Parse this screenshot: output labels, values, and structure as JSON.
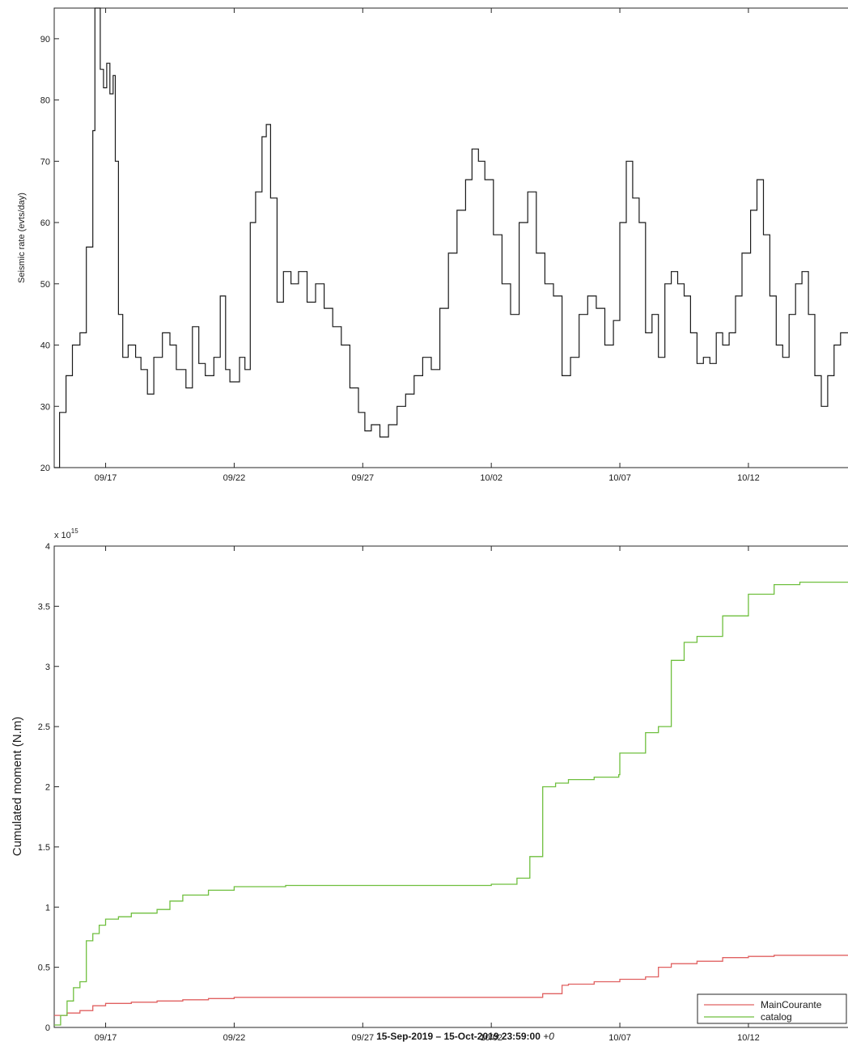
{
  "chart_data": [
    {
      "type": "line",
      "title": "",
      "xlabel": "",
      "ylabel": "Seismic rate (evts/day)",
      "xlim": [
        "2019-09-15",
        "2019-10-15"
      ],
      "ylim": [
        20,
        95
      ],
      "yticks": [
        20,
        30,
        40,
        50,
        60,
        70,
        80,
        90
      ],
      "xticks": [
        {
          "date": "2019-09-17",
          "label": "09/17"
        },
        {
          "date": "2019-09-22",
          "label": "09/22"
        },
        {
          "date": "2019-09-27",
          "label": "09/27"
        },
        {
          "date": "2019-10-02",
          "label": "10/02"
        },
        {
          "date": "2019-10-07",
          "label": "10/07"
        },
        {
          "date": "2019-10-12",
          "label": "10/12"
        }
      ],
      "grid": false,
      "color": "#1a1a1a",
      "series": [
        {
          "x": [
            "2019-09-15 00:00",
            "2019-09-15 05:00",
            "2019-09-15 11:00",
            "2019-09-15 17:00",
            "2019-09-16 00:00",
            "2019-09-16 06:00",
            "2019-09-16 12:00",
            "2019-09-16 14:00",
            "2019-09-16 19:00",
            "2019-09-16 22:00",
            "2019-09-17 01:00",
            "2019-09-17 04:00",
            "2019-09-17 07:00",
            "2019-09-17 09:00",
            "2019-09-17 12:00",
            "2019-09-17 16:00",
            "2019-09-17 21:00",
            "2019-09-18 04:00",
            "2019-09-18 09:00",
            "2019-09-18 15:00",
            "2019-09-18 21:00",
            "2019-09-19 05:00",
            "2019-09-19 12:00",
            "2019-09-19 18:00",
            "2019-09-20 03:00",
            "2019-09-20 09:00",
            "2019-09-20 15:00",
            "2019-09-20 21:00",
            "2019-09-21 05:00",
            "2019-09-21 11:00",
            "2019-09-21 16:00",
            "2019-09-21 20:00",
            "2019-09-22 00:00",
            "2019-09-22 05:00",
            "2019-09-22 10:00",
            "2019-09-22 15:00",
            "2019-09-22 20:00",
            "2019-09-23 02:00",
            "2019-09-23 06:00",
            "2019-09-23 10:00",
            "2019-09-23 16:00",
            "2019-09-23 22:00",
            "2019-09-24 05:00",
            "2019-09-24 12:00",
            "2019-09-24 20:00",
            "2019-09-25 04:00",
            "2019-09-25 12:00",
            "2019-09-25 20:00",
            "2019-09-26 04:00",
            "2019-09-26 12:00",
            "2019-09-26 20:00",
            "2019-09-27 02:00",
            "2019-09-27 08:00",
            "2019-09-27 16:00",
            "2019-09-28 00:00",
            "2019-09-28 08:00",
            "2019-09-28 16:00",
            "2019-09-29 00:00",
            "2019-09-29 08:00",
            "2019-09-29 16:00",
            "2019-09-30 00:00",
            "2019-09-30 08:00",
            "2019-09-30 16:00",
            "2019-10-01 00:00",
            "2019-10-01 06:00",
            "2019-10-01 12:00",
            "2019-10-01 18:00",
            "2019-10-02 02:00",
            "2019-10-02 10:00",
            "2019-10-02 18:00",
            "2019-10-03 02:00",
            "2019-10-03 10:00",
            "2019-10-03 18:00",
            "2019-10-04 02:00",
            "2019-10-04 10:00",
            "2019-10-04 18:00",
            "2019-10-05 02:00",
            "2019-10-05 10:00",
            "2019-10-05 18:00",
            "2019-10-06 02:00",
            "2019-10-06 10:00",
            "2019-10-06 18:00",
            "2019-10-07 00:00",
            "2019-10-07 06:00",
            "2019-10-07 12:00",
            "2019-10-07 18:00",
            "2019-10-08 00:00",
            "2019-10-08 06:00",
            "2019-10-08 12:00",
            "2019-10-08 18:00",
            "2019-10-09 00:00",
            "2019-10-09 06:00",
            "2019-10-09 12:00",
            "2019-10-09 18:00",
            "2019-10-10 00:00",
            "2019-10-10 06:00",
            "2019-10-10 12:00",
            "2019-10-10 18:00",
            "2019-10-11 00:00",
            "2019-10-11 06:00",
            "2019-10-11 12:00",
            "2019-10-11 18:00",
            "2019-10-12 02:00",
            "2019-10-12 08:00",
            "2019-10-12 14:00",
            "2019-10-12 20:00",
            "2019-10-13 02:00",
            "2019-10-13 08:00",
            "2019-10-13 14:00",
            "2019-10-13 20:00",
            "2019-10-14 02:00",
            "2019-10-14 08:00",
            "2019-10-14 14:00",
            "2019-10-14 20:00",
            "2019-10-15 02:00",
            "2019-10-15 08:00",
            "2019-10-15 14:00",
            "2019-10-15 20:00",
            "2019-10-15 23:59"
          ],
          "y": [
            20,
            29,
            35,
            40,
            42,
            56,
            75,
            95,
            85,
            82,
            86,
            81,
            84,
            70,
            45,
            38,
            40,
            38,
            36,
            32,
            38,
            42,
            40,
            36,
            33,
            43,
            37,
            35,
            38,
            48,
            36,
            34,
            34,
            38,
            36,
            60,
            65,
            74,
            76,
            64,
            47,
            52,
            50,
            52,
            47,
            50,
            46,
            43,
            40,
            33,
            29,
            26,
            27,
            25,
            27,
            30,
            32,
            35,
            38,
            36,
            46,
            55,
            62,
            67,
            72,
            70,
            67,
            58,
            50,
            45,
            60,
            65,
            55,
            50,
            48,
            35,
            38,
            45,
            48,
            46,
            40,
            44,
            60,
            70,
            64,
            60,
            42,
            45,
            38,
            50,
            52,
            50,
            48,
            42,
            37,
            38,
            37,
            42,
            40,
            42,
            48,
            55,
            62,
            67,
            58,
            48,
            40,
            38,
            45,
            50,
            52,
            45,
            35,
            30,
            35,
            40,
            42,
            42,
            42
          ],
          "name": ""
        }
      ]
    },
    {
      "type": "line",
      "title": "",
      "xlabel": "15-Sep-2019 – 15-Oct-2019 23:59:00",
      "xlabel_suffix": "+0",
      "ylabel": "Cumulated moment (N.m)",
      "exponent_label_base": "x 10",
      "exponent_label_power": "15",
      "xlim": [
        "2019-09-15",
        "2019-10-15"
      ],
      "ylim": [
        0,
        4
      ],
      "yticks": [
        0,
        0.5,
        1,
        1.5,
        2,
        2.5,
        3,
        3.5,
        4
      ],
      "ytick_labels": [
        "0",
        "0.5",
        "1",
        "1.5",
        "2",
        "2.5",
        "3",
        "3.5",
        "4"
      ],
      "xticks": [
        {
          "date": "2019-09-17",
          "label": "09/17"
        },
        {
          "date": "2019-09-22",
          "label": "09/22"
        },
        {
          "date": "2019-09-27",
          "label": "09/27"
        },
        {
          "date": "2019-10-02",
          "label": "10/02"
        },
        {
          "date": "2019-10-07",
          "label": "10/07"
        },
        {
          "date": "2019-10-12",
          "label": "10/12"
        }
      ],
      "grid": false,
      "legend_position": "bottom-right",
      "series": [
        {
          "name": "MainCourante",
          "color": "#e06060",
          "x": [
            "2019-09-15 00:00",
            "2019-09-15 12:00",
            "2019-09-16 00:00",
            "2019-09-16 12:00",
            "2019-09-17 00:00",
            "2019-09-18 00:00",
            "2019-09-19 00:00",
            "2019-09-20 00:00",
            "2019-09-21 00:00",
            "2019-09-22 00:00",
            "2019-09-24 00:00",
            "2019-09-27 00:00",
            "2019-10-01 00:00",
            "2019-10-03 00:00",
            "2019-10-04 00:00",
            "2019-10-04 18:00",
            "2019-10-05 00:00",
            "2019-10-06 00:00",
            "2019-10-07 00:00",
            "2019-10-08 00:00",
            "2019-10-08 12:00",
            "2019-10-09 00:00",
            "2019-10-10 00:00",
            "2019-10-11 00:00",
            "2019-10-12 00:00",
            "2019-10-13 00:00",
            "2019-10-14 00:00",
            "2019-10-15 23:59"
          ],
          "y": [
            0.1,
            0.12,
            0.14,
            0.18,
            0.2,
            0.21,
            0.22,
            0.23,
            0.24,
            0.25,
            0.25,
            0.25,
            0.25,
            0.25,
            0.28,
            0.35,
            0.36,
            0.38,
            0.4,
            0.42,
            0.5,
            0.53,
            0.55,
            0.58,
            0.59,
            0.6,
            0.6,
            0.61
          ]
        },
        {
          "name": "catalog",
          "color": "#6fbf3e",
          "x": [
            "2019-09-15 00:00",
            "2019-09-15 06:00",
            "2019-09-15 12:00",
            "2019-09-15 18:00",
            "2019-09-16 00:00",
            "2019-09-16 06:00",
            "2019-09-16 12:00",
            "2019-09-16 18:00",
            "2019-09-17 00:00",
            "2019-09-17 12:00",
            "2019-09-18 00:00",
            "2019-09-19 00:00",
            "2019-09-19 12:00",
            "2019-09-20 00:00",
            "2019-09-21 00:00",
            "2019-09-22 00:00",
            "2019-09-24 00:00",
            "2019-09-27 00:00",
            "2019-10-02 00:00",
            "2019-10-03 00:00",
            "2019-10-03 12:00",
            "2019-10-04 00:00",
            "2019-10-04 12:00",
            "2019-10-05 00:00",
            "2019-10-06 00:00",
            "2019-10-06 23:00",
            "2019-10-07 00:00",
            "2019-10-08 00:00",
            "2019-10-08 12:00",
            "2019-10-09 00:00",
            "2019-10-09 12:00",
            "2019-10-10 00:00",
            "2019-10-11 00:00",
            "2019-10-12 00:00",
            "2019-10-13 00:00",
            "2019-10-14 00:00",
            "2019-10-15 23:59"
          ],
          "y": [
            0.02,
            0.1,
            0.22,
            0.33,
            0.38,
            0.72,
            0.78,
            0.85,
            0.9,
            0.92,
            0.95,
            0.98,
            1.05,
            1.1,
            1.14,
            1.17,
            1.18,
            1.18,
            1.19,
            1.24,
            1.42,
            2.0,
            2.03,
            2.06,
            2.08,
            2.1,
            2.28,
            2.45,
            2.5,
            3.05,
            3.2,
            3.25,
            3.42,
            3.6,
            3.68,
            3.7,
            3.73
          ]
        }
      ]
    }
  ]
}
